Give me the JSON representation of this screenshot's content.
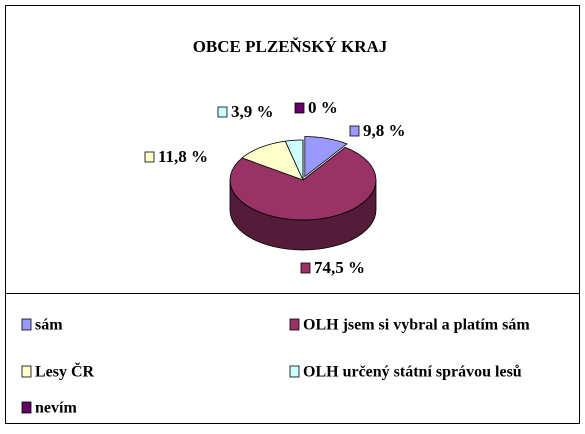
{
  "chart_data": {
    "type": "pie3d",
    "title": "OBCE PLZEŇSKÝ KRAJ",
    "categories": [
      "sám",
      "OLH jsem si vybral a platím sám",
      "Lesy ČR",
      "OLH určený státní správou lesů",
      "nevím"
    ],
    "values": [
      9.8,
      74.5,
      11.8,
      3.9,
      0
    ],
    "value_labels": [
      "9,8 %",
      "74,5 %",
      "11,8 %",
      "3,9 %",
      "0 %"
    ],
    "colors": [
      "#9999ff",
      "#993366",
      "#ffffcc",
      "#ccffff",
      "#660066"
    ],
    "legend": "bottom"
  }
}
